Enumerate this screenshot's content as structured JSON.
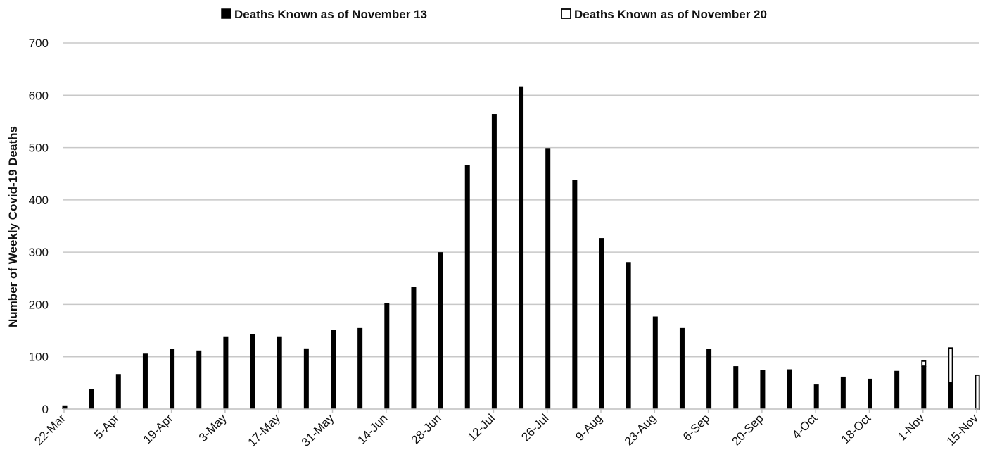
{
  "chart_data": {
    "type": "bar",
    "title": "",
    "xlabel": "",
    "ylabel": "Number of Weekly Covid-19 Deaths",
    "ylim": [
      0,
      700
    ],
    "yticks": [
      0,
      100,
      200,
      300,
      400,
      500,
      600,
      700
    ],
    "grid": true,
    "legend_position": "top",
    "categories": [
      "22-Mar",
      "29-Mar",
      "5-Apr",
      "12-Apr",
      "19-Apr",
      "26-Apr",
      "3-May",
      "10-May",
      "17-May",
      "24-May",
      "31-May",
      "7-Jun",
      "14-Jun",
      "21-Jun",
      "28-Jun",
      "5-Jul",
      "12-Jul",
      "19-Jul",
      "26-Jul",
      "2-Aug",
      "9-Aug",
      "16-Aug",
      "23-Aug",
      "30-Aug",
      "6-Sep",
      "13-Sep",
      "20-Sep",
      "27-Sep",
      "4-Oct",
      "11-Oct",
      "18-Oct",
      "25-Oct",
      "1-Nov",
      "8-Nov",
      "15-Nov"
    ],
    "tick_labels": [
      "22-Mar",
      "5-Apr",
      "19-Apr",
      "3-May",
      "17-May",
      "31-May",
      "14-Jun",
      "28-Jun",
      "12-Jul",
      "26-Jul",
      "9-Aug",
      "23-Aug",
      "6-Sep",
      "20-Sep",
      "4-Oct",
      "18-Oct",
      "1-Nov",
      "15-Nov"
    ],
    "series": [
      {
        "name": "Deaths Known as of November 13",
        "color": "#000000",
        "values": [
          7,
          38,
          67,
          106,
          115,
          112,
          139,
          144,
          139,
          116,
          151,
          155,
          202,
          233,
          300,
          466,
          564,
          617,
          499,
          438,
          327,
          281,
          177,
          155,
          115,
          82,
          75,
          76,
          47,
          62,
          58,
          73,
          82,
          50,
          0
        ]
      },
      {
        "name": "Deaths Known as of November 20",
        "color": "#ffffff",
        "values": [
          0,
          0,
          0,
          0,
          0,
          0,
          0,
          0,
          0,
          0,
          0,
          0,
          0,
          0,
          0,
          0,
          0,
          0,
          0,
          0,
          0,
          0,
          0,
          0,
          0,
          0,
          0,
          0,
          0,
          0,
          0,
          0,
          11,
          68,
          66
        ]
      }
    ]
  }
}
